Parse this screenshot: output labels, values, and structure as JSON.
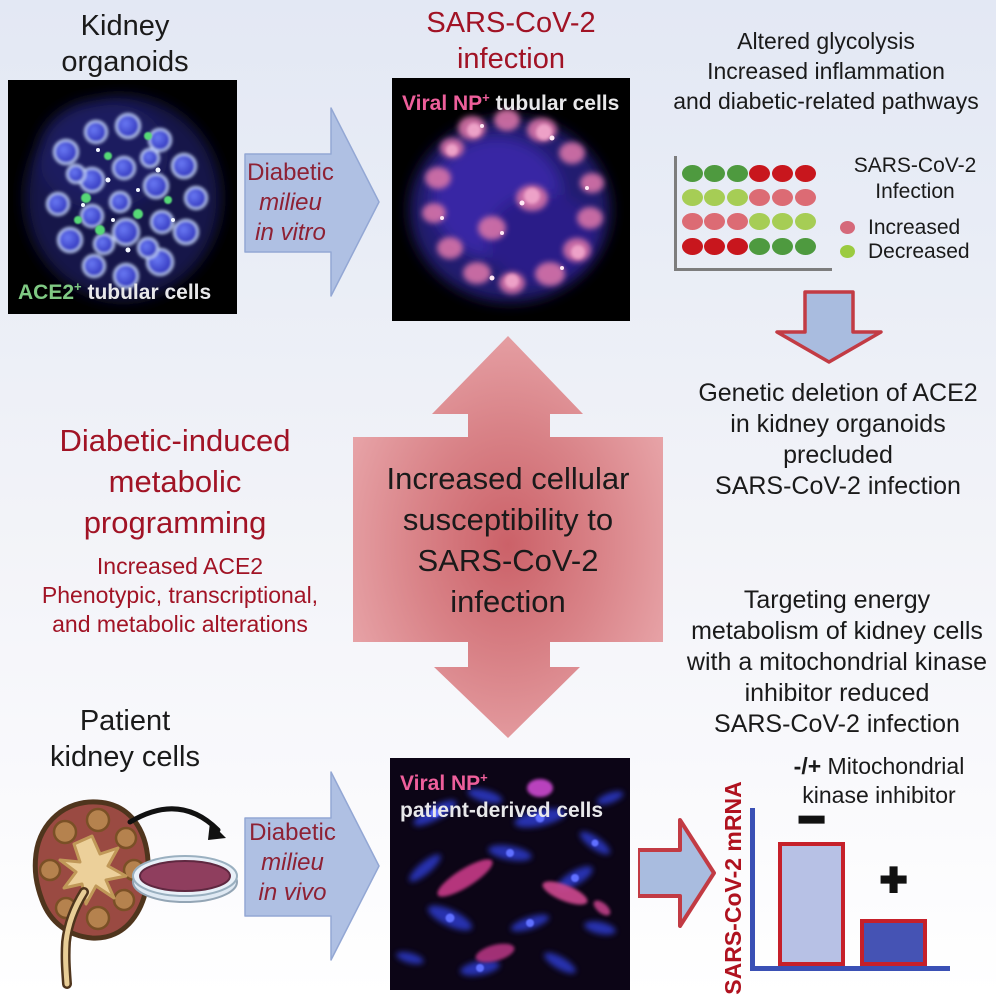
{
  "colors": {
    "dark_red_text": "#a11325",
    "arrow_text_red": "#8e2134",
    "arrow_blue_fill": "#afc0e3",
    "arrow_red_border": "#c23b44",
    "center_arrow_pink": "#d98a8f",
    "micrograph_label_green": "#7fc983",
    "micrograph_label_pink": "#ee5f9b",
    "axis_blue": "#3a50b5",
    "bar_border_red": "#c6202a"
  },
  "top_left": {
    "title": [
      "Kidney",
      "organoids"
    ],
    "micrograph_label": {
      "gene": "ACE2",
      "sup": "+",
      "rest": " tubular cells"
    }
  },
  "top_center": {
    "title": [
      "SARS-CoV-2",
      "infection"
    ],
    "micrograph_label": {
      "marker": "Viral NP",
      "sup": "+",
      "rest": " tubular cells"
    }
  },
  "top_right": {
    "heading": [
      "Altered glycolysis",
      "Increased inflammation",
      "and diabetic-related pathways"
    ]
  },
  "arrow_in_vitro": {
    "lines": [
      "Diabetic",
      "milieu",
      "in vitro"
    ]
  },
  "arrow_in_vivo": {
    "lines": [
      "Diabetic",
      "milieu",
      "in vivo"
    ]
  },
  "right_mid": {
    "text": [
      "Genetic deletion of ACE2",
      "in kidney organoids",
      "precluded",
      "SARS-CoV-2 infection"
    ]
  },
  "center_arrow": {
    "text": [
      "Increased cellular",
      "susceptibility to",
      "SARS-CoV-2",
      "infection"
    ]
  },
  "left_mid": {
    "title": [
      "Diabetic-induced",
      "metabolic",
      "programming"
    ],
    "subtitle": [
      "Increased ACE2",
      "Phenotypic, transcriptional,",
      "and metabolic alterations"
    ]
  },
  "right_lower": {
    "text": [
      "Targeting energy",
      "metabolism of kidney cells",
      "with a mitochondrial kinase",
      "inhibitor reduced",
      "SARS-CoV-2 infection"
    ]
  },
  "bottom_left": {
    "title": [
      "Patient",
      "kidney cells"
    ],
    "micrograph_label": {
      "marker": "Viral NP",
      "sup": "+",
      "line2": "patient-derived cells"
    }
  },
  "chart_data": [
    {
      "type": "heatmap",
      "rows": 4,
      "cols": 6,
      "cells": [
        [
          "gd",
          "gd",
          "gd",
          "rd",
          "rd",
          "rd"
        ],
        [
          "gl",
          "gl",
          "gl",
          "rl",
          "rl",
          "rl"
        ],
        [
          "rl",
          "rl",
          "rl",
          "gl",
          "gl",
          "gl"
        ],
        [
          "rd",
          "rd",
          "rd",
          "gd",
          "gd",
          "gd"
        ]
      ],
      "palette": {
        "gd": "#4e9a3f",
        "gl": "#a6cd55",
        "rd": "#c8161d",
        "rl": "#dc6b74"
      },
      "legend": {
        "title_lines": [
          "SARS-CoV-2",
          "Infection"
        ],
        "entries": [
          {
            "label": "Increased",
            "color": "#d5697a"
          },
          {
            "label": "Decreased",
            "color": "#9bcb40"
          }
        ]
      }
    },
    {
      "type": "bar",
      "title": "-/+ Mitochondrial kinase inhibitor",
      "title_prefix": "-/+",
      "title_line1_rest": " Mitochondrial",
      "title_line2": "kinase inhibitor",
      "ylabel": "SARS-CoV-2 mRNA",
      "xlabel": "",
      "categories": [
        "−",
        "+"
      ],
      "values": [
        1.0,
        0.38
      ],
      "ylim": [
        0,
        1.1
      ],
      "bar_colors": [
        "#b7c1e5",
        "#4553b4"
      ],
      "bar_border": "#c6202a",
      "legend_position": "none"
    }
  ]
}
